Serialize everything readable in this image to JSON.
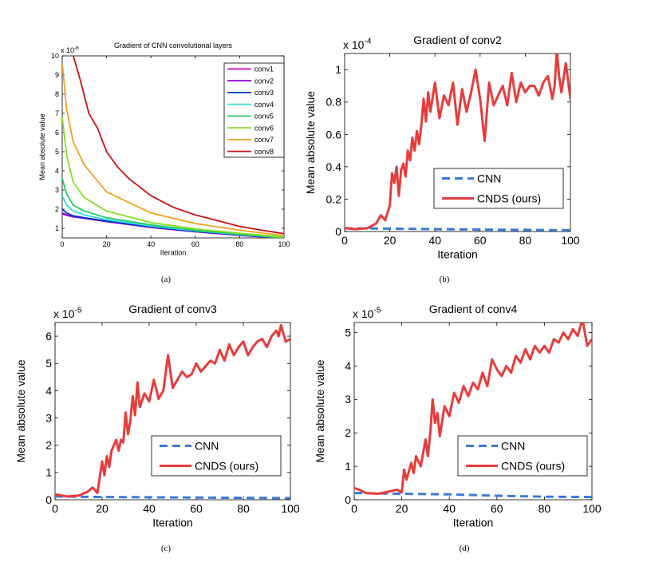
{
  "captions": [
    "(a)",
    "(b)",
    "(c)",
    "(d)"
  ],
  "chart_data": [
    {
      "type": "line",
      "title": "Gradient of CNN convolutional layers",
      "xlabel": "Iteration",
      "ylabel": "Mean absolute value",
      "xlim": [
        0,
        100
      ],
      "ylim": [
        0.5,
        10
      ],
      "xticks": [
        0,
        20,
        40,
        60,
        80,
        100
      ],
      "yticks": [
        1,
        2,
        3,
        4,
        5,
        6,
        7,
        8,
        9,
        10
      ],
      "exponent_label": "x 10",
      "exponent_power": "-6",
      "legend_position": "top-right",
      "series": [
        {
          "name": "conv1",
          "color": "#cc00cc",
          "x": [
            0,
            2,
            5,
            10,
            20,
            40,
            60,
            80,
            100
          ],
          "y": [
            1.75,
            1.68,
            1.6,
            1.52,
            1.35,
            1.05,
            0.82,
            0.63,
            0.48
          ]
        },
        {
          "name": "conv2",
          "color": "#7a00cc",
          "x": [
            0,
            2,
            5,
            10,
            20,
            40,
            60,
            80,
            100
          ],
          "y": [
            1.8,
            1.7,
            1.62,
            1.53,
            1.36,
            1.06,
            0.83,
            0.64,
            0.48
          ]
        },
        {
          "name": "conv3",
          "color": "#0033cc",
          "x": [
            0,
            2,
            5,
            10,
            20,
            40,
            60,
            80,
            100
          ],
          "y": [
            2.0,
            1.8,
            1.65,
            1.55,
            1.38,
            1.08,
            0.84,
            0.65,
            0.49
          ]
        },
        {
          "name": "conv4",
          "color": "#33dddd",
          "x": [
            0,
            2,
            5,
            10,
            20,
            40,
            60,
            80,
            100
          ],
          "y": [
            2.7,
            2.2,
            1.9,
            1.7,
            1.45,
            1.12,
            0.87,
            0.67,
            0.5
          ]
        },
        {
          "name": "conv5",
          "color": "#22cc66",
          "x": [
            0,
            2,
            5,
            10,
            20,
            40,
            60,
            80,
            100
          ],
          "y": [
            3.6,
            2.8,
            2.2,
            1.9,
            1.55,
            1.18,
            0.9,
            0.69,
            0.51
          ]
        },
        {
          "name": "conv6",
          "color": "#88dd22",
          "x": [
            0,
            2,
            5,
            10,
            20,
            40,
            60,
            80,
            100
          ],
          "y": [
            6.8,
            4.8,
            3.4,
            2.6,
            1.9,
            1.3,
            0.97,
            0.74,
            0.55
          ]
        },
        {
          "name": "conv7",
          "color": "#f0a020",
          "x": [
            0,
            2,
            5,
            10,
            20,
            40,
            60,
            80,
            100
          ],
          "y": [
            9.6,
            7.2,
            5.5,
            4.3,
            2.9,
            1.8,
            1.25,
            0.9,
            0.62
          ]
        },
        {
          "name": "conv8",
          "color": "#cc1111",
          "x": [
            5,
            8,
            12,
            16,
            20,
            25,
            30,
            40,
            50,
            60,
            70,
            80,
            90,
            100
          ],
          "y": [
            10.0,
            8.8,
            7.0,
            6.2,
            5.0,
            4.2,
            3.6,
            2.7,
            2.1,
            1.7,
            1.4,
            1.1,
            0.9,
            0.72
          ]
        }
      ]
    },
    {
      "type": "line",
      "title": "Gradient of conv2",
      "xlabel": "Iteration",
      "ylabel": "Mean absolute value",
      "xlim": [
        0,
        100
      ],
      "ylim": [
        0,
        1.1
      ],
      "xticks": [
        0,
        20,
        40,
        60,
        80,
        100
      ],
      "yticks": [
        0,
        0.2,
        0.4,
        0.6,
        0.8,
        1
      ],
      "ytick_labels": [
        "0",
        "0.2",
        "0.4",
        "0.6",
        "0.8",
        "1"
      ],
      "exponent_label": "x 10",
      "exponent_power": "-4",
      "legend_position": "bottom-right",
      "series": [
        {
          "name": "CNN",
          "color": "#3a7bd5",
          "dash": true,
          "x": [
            0,
            20,
            40,
            60,
            80,
            100
          ],
          "y": [
            0.02,
            0.018,
            0.015,
            0.012,
            0.01,
            0.008
          ]
        },
        {
          "name": "CNDS (ours)",
          "color": "#e63c3c",
          "x": [
            0,
            5,
            10,
            14,
            16,
            18,
            20,
            21,
            22,
            23,
            24,
            25,
            26,
            27,
            28,
            29,
            30,
            31,
            32,
            33,
            34,
            35,
            36,
            37,
            38,
            40,
            42,
            44,
            46,
            48,
            50,
            52,
            54,
            56,
            58,
            60,
            62,
            64,
            66,
            68,
            70,
            72,
            74,
            76,
            78,
            80,
            82,
            84,
            86,
            88,
            90,
            92,
            93,
            94,
            95,
            96,
            98,
            100
          ],
          "y": [
            0.02,
            0.015,
            0.02,
            0.05,
            0.1,
            0.07,
            0.16,
            0.36,
            0.3,
            0.4,
            0.22,
            0.38,
            0.42,
            0.34,
            0.5,
            0.44,
            0.58,
            0.5,
            0.62,
            0.54,
            0.66,
            0.82,
            0.68,
            0.86,
            0.74,
            0.92,
            0.7,
            0.84,
            0.78,
            0.92,
            0.66,
            0.88,
            0.74,
            0.86,
            1.0,
            0.82,
            0.56,
            0.92,
            0.78,
            0.84,
            0.9,
            0.78,
            0.98,
            0.8,
            0.92,
            0.86,
            0.9,
            0.9,
            0.84,
            0.92,
            0.96,
            0.82,
            0.9,
            1.12,
            0.96,
            0.86,
            1.04,
            0.82
          ]
        }
      ]
    },
    {
      "type": "line",
      "title": "Gradient of conv3",
      "xlabel": "Iteration",
      "ylabel": "Mean absolute value",
      "xlim": [
        0,
        100
      ],
      "ylim": [
        0,
        6.5
      ],
      "xticks": [
        0,
        20,
        40,
        60,
        80,
        100
      ],
      "yticks": [
        0,
        1,
        2,
        3,
        4,
        5,
        6
      ],
      "exponent_label": "x 10",
      "exponent_power": "-5",
      "legend_position": "bottom-right",
      "series": [
        {
          "name": "CNN",
          "color": "#3a7bd5",
          "dash": true,
          "x": [
            0,
            20,
            40,
            60,
            80,
            100
          ],
          "y": [
            0.12,
            0.1,
            0.09,
            0.08,
            0.07,
            0.06
          ]
        },
        {
          "name": "CNDS (ours)",
          "color": "#e63c3c",
          "x": [
            0,
            5,
            10,
            14,
            16,
            18,
            20,
            21,
            22,
            23,
            24,
            25,
            26,
            27,
            28,
            29,
            30,
            31,
            32,
            33,
            34,
            35,
            36,
            38,
            40,
            42,
            44,
            46,
            48,
            50,
            52,
            54,
            56,
            58,
            60,
            62,
            64,
            66,
            68,
            70,
            72,
            74,
            76,
            78,
            80,
            82,
            84,
            86,
            88,
            90,
            92,
            94,
            95,
            96,
            98,
            100
          ],
          "y": [
            0.2,
            0.12,
            0.15,
            0.3,
            0.45,
            0.25,
            1.4,
            0.9,
            1.6,
            1.2,
            1.8,
            2.0,
            2.2,
            1.8,
            2.2,
            2.1,
            3.2,
            2.4,
            2.9,
            3.8,
            3.1,
            4.3,
            3.4,
            3.9,
            3.6,
            4.4,
            3.7,
            4.0,
            5.3,
            4.1,
            4.4,
            4.7,
            4.5,
            4.6,
            5.0,
            4.7,
            4.9,
            5.1,
            5.0,
            5.5,
            5.1,
            5.7,
            5.3,
            5.6,
            5.8,
            5.3,
            5.6,
            5.8,
            5.9,
            5.6,
            6.0,
            6.2,
            6.0,
            6.4,
            5.8,
            5.9
          ]
        }
      ]
    },
    {
      "type": "line",
      "title": "Gradient of conv4",
      "xlabel": "Iteration",
      "ylabel": "Mean absolute value",
      "xlim": [
        0,
        100
      ],
      "ylim": [
        0,
        5.3
      ],
      "xticks": [
        0,
        20,
        40,
        60,
        80,
        100
      ],
      "yticks": [
        0,
        1,
        2,
        3,
        4,
        5
      ],
      "exponent_label": "x 10",
      "exponent_power": "-5",
      "legend_position": "bottom-right",
      "series": [
        {
          "name": "CNN",
          "color": "#3a7bd5",
          "dash": true,
          "x": [
            0,
            20,
            40,
            60,
            80,
            100
          ],
          "y": [
            0.2,
            0.18,
            0.16,
            0.12,
            0.09,
            0.08
          ]
        },
        {
          "name": "CNDS (ours)",
          "color": "#e63c3c",
          "x": [
            0,
            2,
            5,
            10,
            15,
            18,
            20,
            21,
            22,
            24,
            25,
            26,
            28,
            30,
            31,
            32,
            33,
            34,
            35,
            36,
            38,
            40,
            42,
            44,
            46,
            48,
            50,
            52,
            54,
            56,
            58,
            60,
            62,
            64,
            66,
            68,
            70,
            72,
            74,
            76,
            78,
            80,
            82,
            84,
            86,
            88,
            90,
            92,
            94,
            96,
            98,
            100
          ],
          "y": [
            0.35,
            0.3,
            0.2,
            0.18,
            0.25,
            0.3,
            0.22,
            0.9,
            0.6,
            1.1,
            0.8,
            1.3,
            1.0,
            1.8,
            1.3,
            2.0,
            3.0,
            2.3,
            2.6,
            1.9,
            2.8,
            2.5,
            3.2,
            2.9,
            3.4,
            3.1,
            3.5,
            3.3,
            3.8,
            3.4,
            4.2,
            3.9,
            3.7,
            4.0,
            3.8,
            4.3,
            4.1,
            4.5,
            4.2,
            4.6,
            4.4,
            4.6,
            4.4,
            4.8,
            4.7,
            5.0,
            4.8,
            5.1,
            4.9,
            5.4,
            4.6,
            4.8
          ]
        }
      ]
    }
  ]
}
